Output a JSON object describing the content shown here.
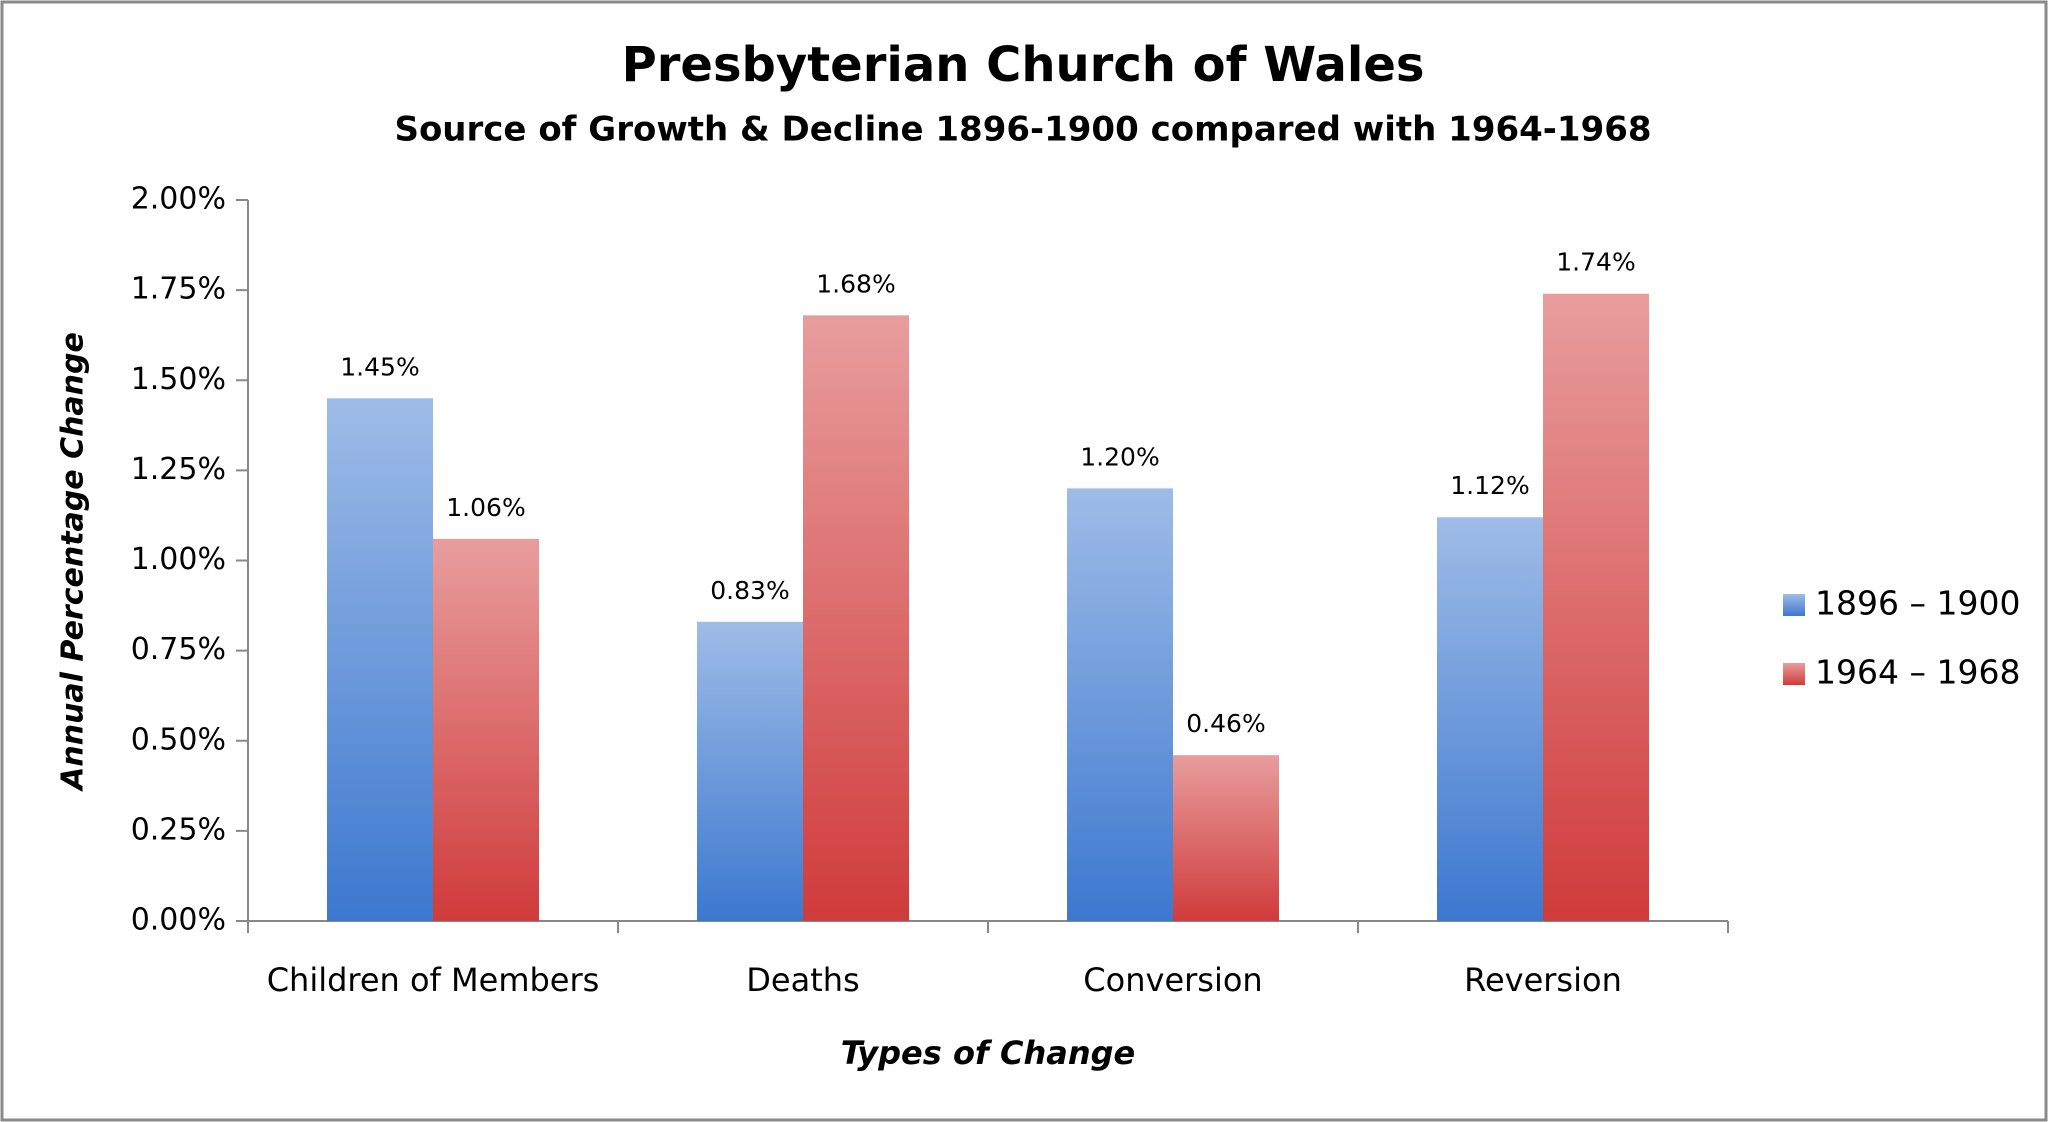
{
  "chart_data": {
    "type": "bar",
    "title": "Presbyterian Church of Wales",
    "subtitle": "Source of Growth & Decline 1896-1900 compared with 1964-1968",
    "x_label": "Types of Change",
    "y_label": "Annual Percentage Change",
    "categories": [
      "Children of Members",
      "Deaths",
      "Conversion",
      "Reversion"
    ],
    "series": [
      {
        "name": "1896 – 1900",
        "color": "#3c78cf",
        "values": [
          1.45,
          0.83,
          1.2,
          1.12
        ],
        "value_labels": [
          "1.45%",
          "0.83%",
          "1.20%",
          "1.12%"
        ]
      },
      {
        "name": "1964 – 1968",
        "color": "#d03b3b",
        "values": [
          1.06,
          1.68,
          0.46,
          1.74
        ],
        "value_labels": [
          "1.06%",
          "1.68%",
          "0.46%",
          "1.74%"
        ]
      }
    ],
    "ylim": [
      0,
      2
    ],
    "yticks": [
      {
        "value": 0,
        "label": "0.00%"
      },
      {
        "value": 0.25,
        "label": "0.25%"
      },
      {
        "value": 0.5,
        "label": "0.50%"
      },
      {
        "value": 0.75,
        "label": "0.75%"
      },
      {
        "value": 1,
        "label": "1.00%"
      },
      {
        "value": 1.25,
        "label": "1.25%"
      },
      {
        "value": 1.5,
        "label": "1.50%"
      },
      {
        "value": 1.75,
        "label": "1.75%"
      },
      {
        "value": 2,
        "label": "2.00%"
      }
    ],
    "grid": false,
    "legend": "right"
  }
}
